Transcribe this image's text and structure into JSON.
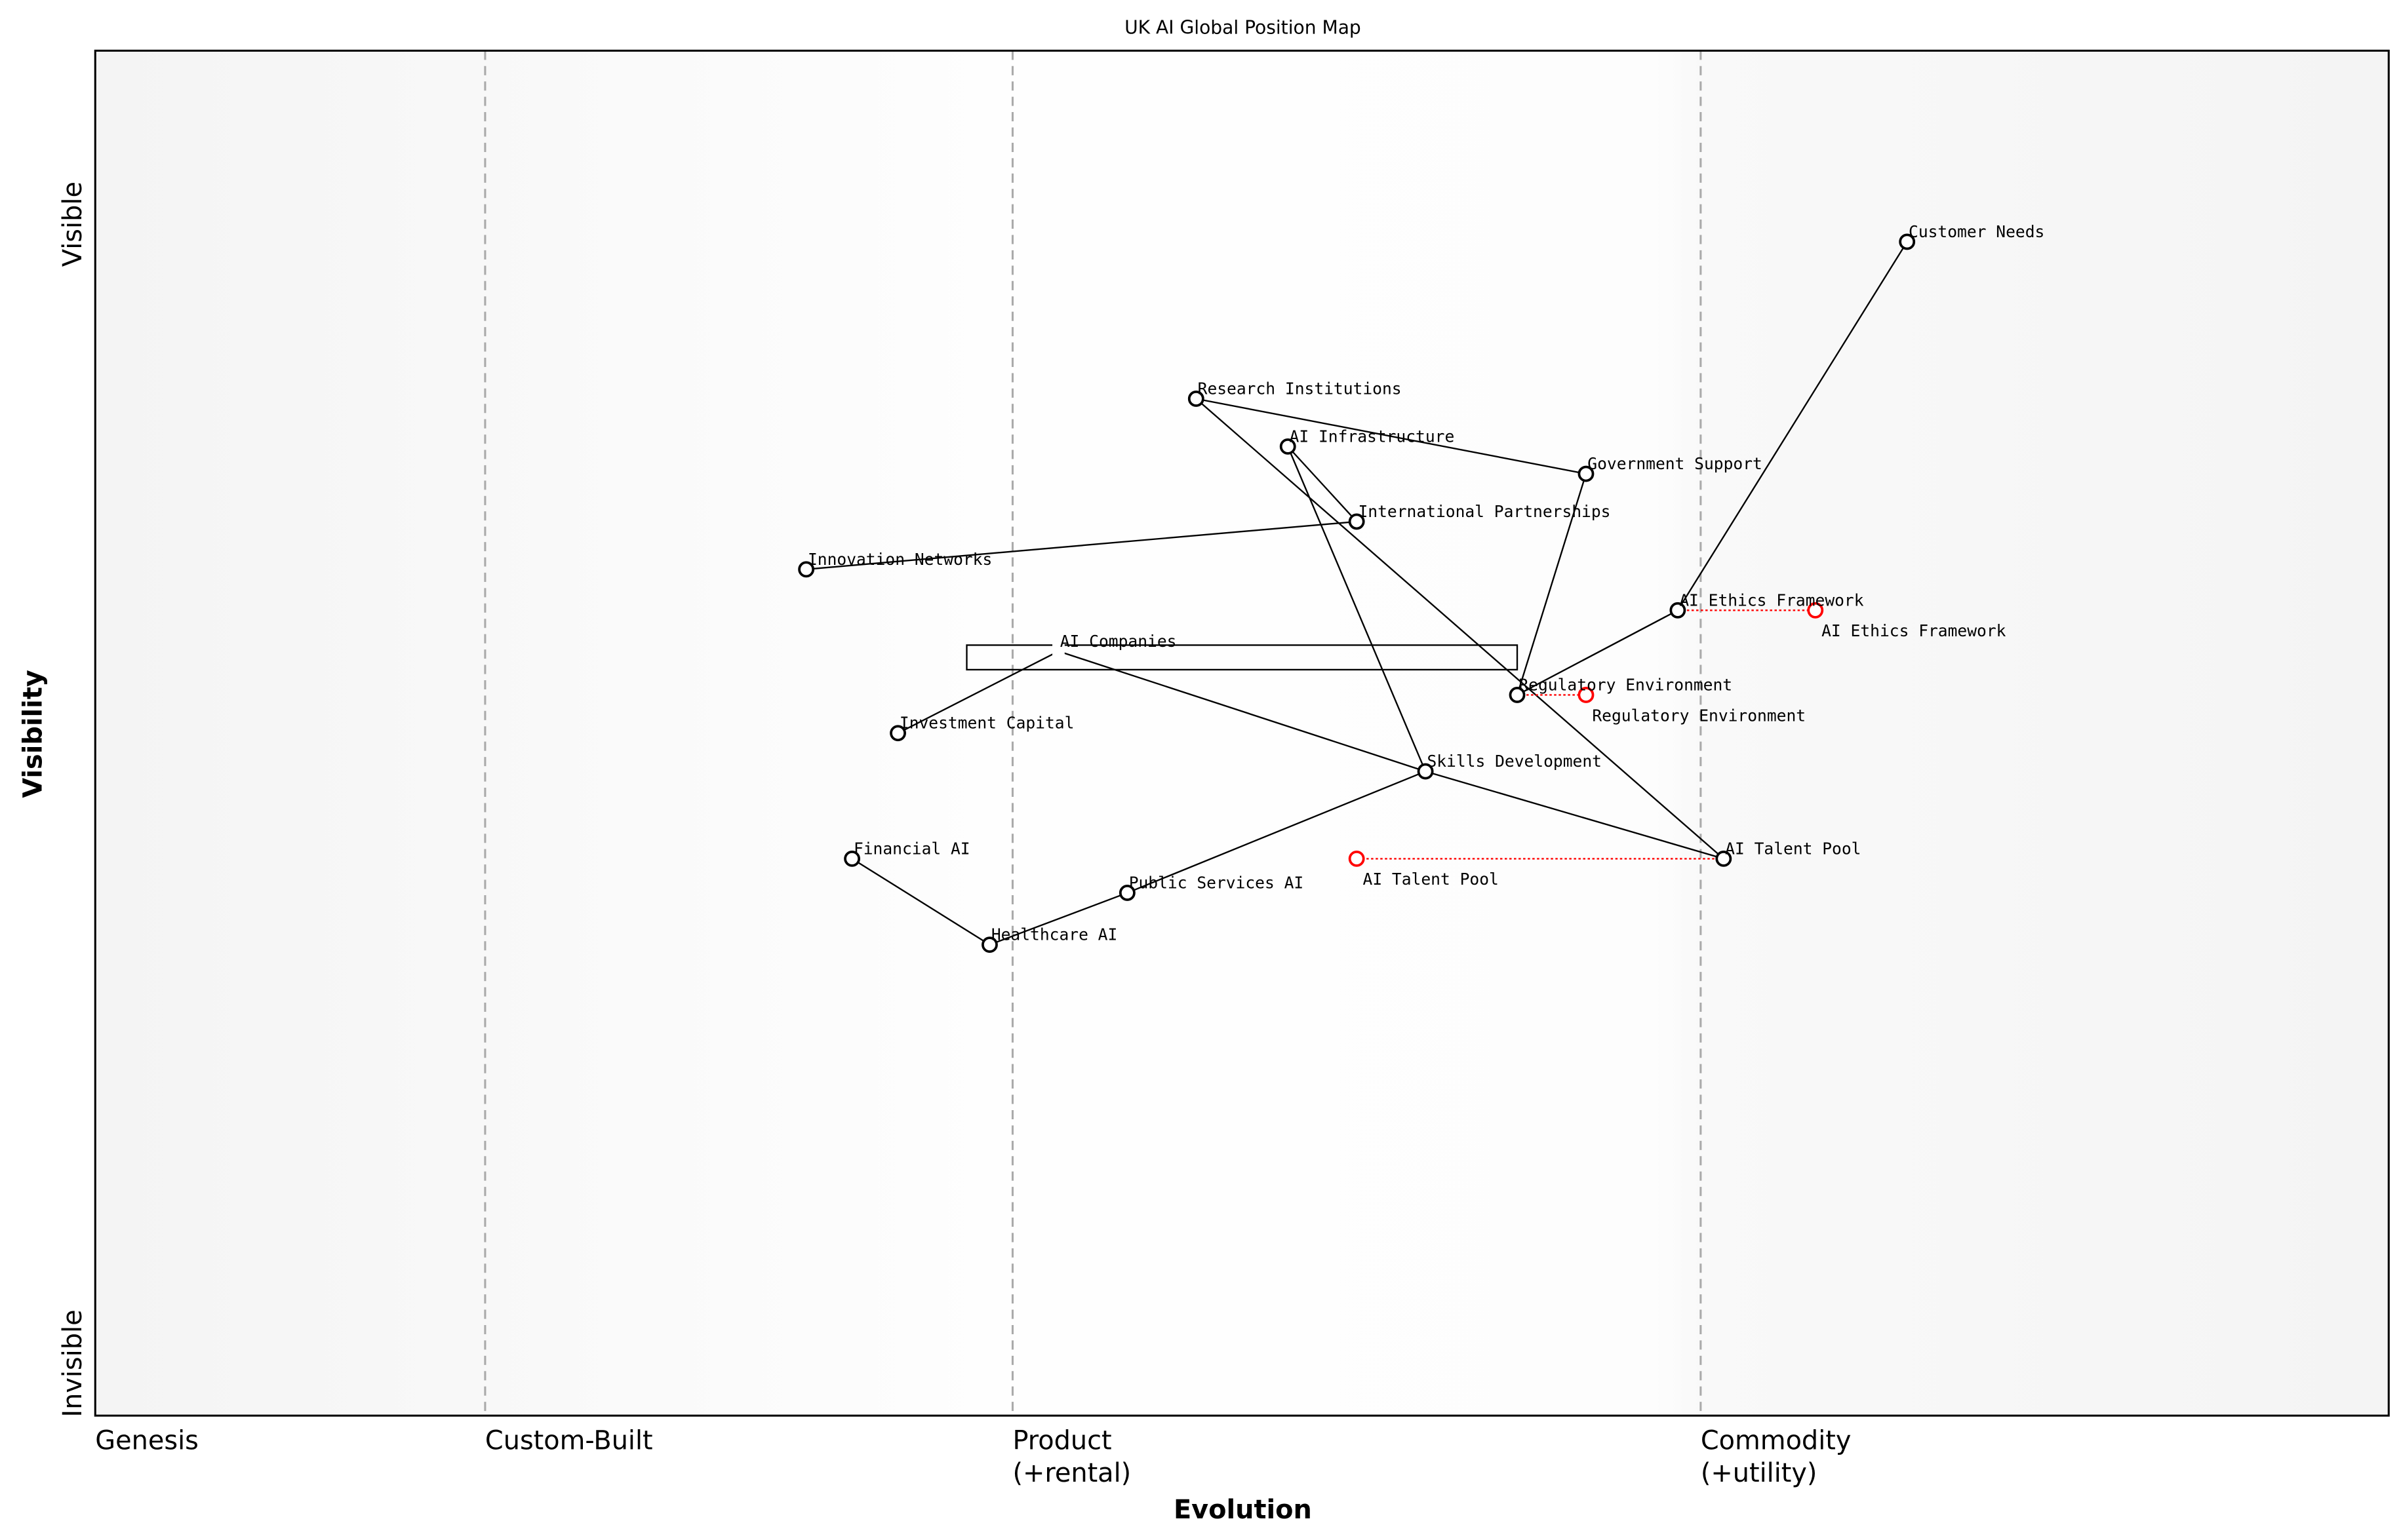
{
  "title": "UK AI Global Position Map",
  "x_axis": {
    "label": "Evolution",
    "stages": [
      {
        "label": "Genesis",
        "line2": "",
        "at": 0.0
      },
      {
        "label": "Custom-Built",
        "line2": "",
        "at": 0.17
      },
      {
        "label": "Product",
        "line2": "(+rental)",
        "at": 0.4
      },
      {
        "label": "Commodity",
        "line2": "(+utility)",
        "at": 0.7
      }
    ]
  },
  "y_axis": {
    "label": "Visibility",
    "top": "Visible",
    "bottom": "Invisible"
  },
  "colors": {
    "node": "#000000",
    "evolve": "#ff0000",
    "stage_line": "#aaaaaa"
  },
  "components": [
    {
      "name": "Customer Needs",
      "evolution": 0.79,
      "visibility": 0.86
    },
    {
      "name": "Research Institutions",
      "evolution": 0.48,
      "visibility": 0.745
    },
    {
      "name": "AI Infrastructure",
      "evolution": 0.52,
      "visibility": 0.71
    },
    {
      "name": "Government Support",
      "evolution": 0.65,
      "visibility": 0.69
    },
    {
      "name": "International Partnerships",
      "evolution": 0.55,
      "visibility": 0.655
    },
    {
      "name": "Innovation Networks",
      "evolution": 0.31,
      "visibility": 0.62
    },
    {
      "name": "AI Ethics Framework",
      "evolution": 0.69,
      "visibility": 0.59
    },
    {
      "name": "AI Companies",
      "evolution": 0.42,
      "visibility": 0.56,
      "hidden_marker": true
    },
    {
      "name": "Investment Capital",
      "evolution": 0.35,
      "visibility": 0.5
    },
    {
      "name": "Regulatory Environment",
      "evolution": 0.62,
      "visibility": 0.528
    },
    {
      "name": "Skills Development",
      "evolution": 0.58,
      "visibility": 0.472
    },
    {
      "name": "Financial AI",
      "evolution": 0.33,
      "visibility": 0.408
    },
    {
      "name": "AI Talent Pool",
      "evolution": 0.71,
      "visibility": 0.408
    },
    {
      "name": "Public Services AI",
      "evolution": 0.45,
      "visibility": 0.383
    },
    {
      "name": "Healthcare AI",
      "evolution": 0.39,
      "visibility": 0.345
    }
  ],
  "pipeline": {
    "component": "AI Companies",
    "from": 0.38,
    "to": 0.62
  },
  "links": [
    [
      "Customer Needs",
      "AI Ethics Framework"
    ],
    [
      "Research Institutions",
      "Government Support"
    ],
    [
      "Research Institutions",
      "AI Talent Pool"
    ],
    [
      "AI Infrastructure",
      "International Partnerships"
    ],
    [
      "AI Infrastructure",
      "Skills Development"
    ],
    [
      "Government Support",
      "Regulatory Environment"
    ],
    [
      "International Partnerships",
      "Innovation Networks"
    ],
    [
      "AI Ethics Framework",
      "Regulatory Environment"
    ],
    [
      "AI Companies",
      "Investment Capital"
    ],
    [
      "AI Companies",
      "Skills Development"
    ],
    [
      "Skills Development",
      "AI Talent Pool"
    ],
    [
      "Skills Development",
      "Public Services AI"
    ],
    [
      "Public Services AI",
      "Healthcare AI"
    ],
    [
      "Healthcare AI",
      "Financial AI"
    ]
  ],
  "evolve": [
    {
      "name": "AI Ethics Framework",
      "to": 0.75
    },
    {
      "name": "Regulatory Environment",
      "to": 0.65
    },
    {
      "name": "AI Talent Pool",
      "to": 0.55
    }
  ]
}
